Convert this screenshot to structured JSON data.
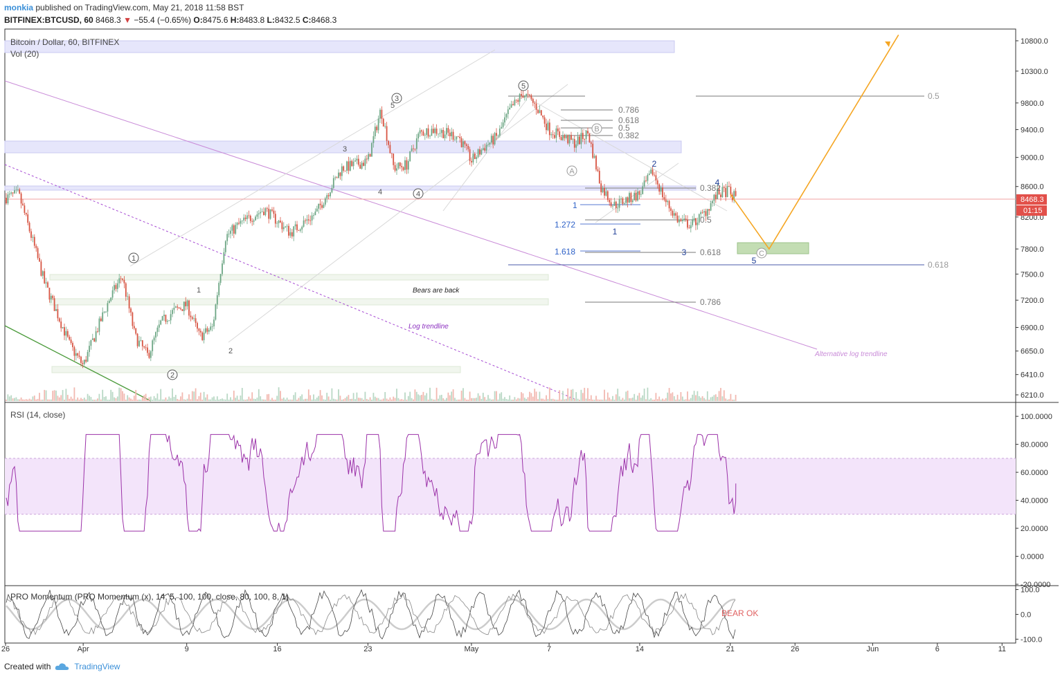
{
  "header": {
    "user": "monkia",
    "published_text": "published on TradingView.com, May 21, 2018 11:58 BST",
    "symbol": "BITFINEX:BTCUSD, 60",
    "last": "8468.3",
    "change_arrow": "▼",
    "change": "−55.4 (−0.65%)",
    "o_label": "O:",
    "o": "8475.6",
    "h_label": "H:",
    "h": "8483.8",
    "l_label": "L:",
    "l": "8432.5",
    "c_label": "C:",
    "c": "8468.3"
  },
  "panels": {
    "main_title": "Bitcoin / Dollar, 60, BITFINEX",
    "vol_title": "Vol (20)",
    "rsi_title": "RSI (14, close)",
    "mom_title": "PRO Momentum (PRO Momentum (x), 14, 5, 100, 100, close, 80, 100, 8, 1)"
  },
  "price_axis": {
    "ticks": [
      "10800.0",
      "10300.0",
      "9800.0",
      "9400.0",
      "9000.0",
      "8600.0",
      "8200.0",
      "7800.0",
      "7500.0",
      "7200.0",
      "6900.0",
      "6650.0",
      "6410.0",
      "6210.0"
    ],
    "last_price_badge": "8468.3",
    "countdown_badge": "01:15"
  },
  "rsi_axis": {
    "ticks": [
      "100.0000",
      "80.0000",
      "60.0000",
      "40.0000",
      "20.0000",
      "0.0000",
      "-20.0000"
    ]
  },
  "mom_axis": {
    "ticks": [
      "100.0",
      "0.0",
      "-100.0"
    ]
  },
  "time_axis": {
    "ticks": [
      "26",
      "Apr",
      "9",
      "16",
      "23",
      "May",
      "7",
      "14",
      "21",
      "26",
      "Jun",
      "6",
      "11"
    ]
  },
  "annotations": {
    "bears_back": "Bears are back",
    "log_trendline": "Log trendline",
    "alt_log_trendline": "Alternative log trendline",
    "bear_ok": "BEAR OK"
  },
  "fib_labels": {
    "f0786_top": "0.786",
    "f0618_top": "0.618",
    "f05_top": "0.5",
    "f0382_top": "0.382",
    "f0382_mid": "0.382",
    "f05_mid": "0.5",
    "f0618_mid": "0.618",
    "f0786_low": "0.786",
    "f05_right": "0.5",
    "f0618_right": "0.618",
    "ext_1": "1",
    "ext_1272": "1.272",
    "ext_1618": "1.618"
  },
  "wave_labels": {
    "c1": "1",
    "c2": "2",
    "c3": "3",
    "c4": "4",
    "c5": "5",
    "cA": "A",
    "cB": "B",
    "cC": "C",
    "w3_small": "3",
    "w4_small": "4",
    "w5_small": "5",
    "w1_small": "1",
    "w2_small": "2",
    "b1": "1",
    "b2": "2",
    "b3": "3",
    "b4": "4",
    "b5": "5"
  },
  "footer": {
    "created_with": "Created with",
    "brand": "TradingView"
  },
  "colors": {
    "up": "#6ba583",
    "down": "#d75442",
    "rsi": "#9b31a8",
    "rsi_band": "#f3e4fa",
    "fib": "#888888",
    "wave_blue": "#1d3c96",
    "ext_blue": "#2f62c8",
    "arrow": "#f5a623",
    "trend_purple": "#c98bd8",
    "green_line": "#4a9a3a",
    "badge_red": "#e2504a"
  },
  "chart_data": {
    "type": "candlestick",
    "title": "Bitcoin / Dollar, 60, BITFINEX",
    "x_range": [
      "2018-03-26",
      "2018-06-12"
    ],
    "ylim": [
      6150,
      11000
    ],
    "y_scale": "log",
    "last_price": 8468.3,
    "swing_path": [
      [
        "2018-03-26",
        8450
      ],
      [
        "2018-03-27",
        8500
      ],
      [
        "2018-03-29",
        7400
      ],
      [
        "2018-03-31",
        6700
      ],
      [
        "2018-04-01",
        6500
      ],
      [
        "2018-04-03",
        7200
      ],
      [
        "2018-04-04",
        7480
      ],
      [
        "2018-04-05",
        6800
      ],
      [
        "2018-04-06",
        6600
      ],
      [
        "2018-04-07",
        6950
      ],
      [
        "2018-04-08",
        7080
      ],
      [
        "2018-04-09",
        7150
      ],
      [
        "2018-04-10",
        6800
      ],
      [
        "2018-04-11",
        6900
      ],
      [
        "2018-04-12",
        7950
      ],
      [
        "2018-04-13",
        8100
      ],
      [
        "2018-04-15",
        8300
      ],
      [
        "2018-04-16",
        8150
      ],
      [
        "2018-04-17",
        8000
      ],
      [
        "2018-04-19",
        8250
      ],
      [
        "2018-04-21",
        8850
      ],
      [
        "2018-04-22",
        8900
      ],
      [
        "2018-04-23",
        8950
      ],
      [
        "2018-04-24",
        9700
      ],
      [
        "2018-04-25",
        8850
      ],
      [
        "2018-04-26",
        8900
      ],
      [
        "2018-04-27",
        9350
      ],
      [
        "2018-04-28",
        9400
      ],
      [
        "2018-04-30",
        9300
      ],
      [
        "2018-05-01",
        8950
      ],
      [
        "2018-05-02",
        9150
      ],
      [
        "2018-05-03",
        9300
      ],
      [
        "2018-05-04",
        9700
      ],
      [
        "2018-05-05",
        9950
      ],
      [
        "2018-05-06",
        9750
      ],
      [
        "2018-05-07",
        9400
      ],
      [
        "2018-05-09",
        9200
      ],
      [
        "2018-05-10",
        9350
      ],
      [
        "2018-05-11",
        8600
      ],
      [
        "2018-05-12",
        8350
      ],
      [
        "2018-05-14",
        8500
      ],
      [
        "2018-05-15",
        8800
      ],
      [
        "2018-05-16",
        8400
      ],
      [
        "2018-05-17",
        8150
      ],
      [
        "2018-05-18",
        8100
      ],
      [
        "2018-05-19",
        8250
      ],
      [
        "2018-05-20",
        8500
      ],
      [
        "2018-05-21",
        8550
      ],
      [
        "2018-05-21",
        8468.3
      ]
    ],
    "projection": [
      [
        "2018-05-21",
        8500
      ],
      [
        "2018-05-24",
        7800
      ],
      [
        "2018-06-03",
        10900
      ]
    ],
    "target_zone": {
      "x": [
        "2018-05-22",
        "2018-05-28"
      ],
      "y": [
        7750,
        7920
      ]
    },
    "rsi": {
      "name": "RSI (14, close)",
      "ylim": [
        -20,
        105
      ],
      "band": [
        30,
        70
      ],
      "last": 52
    },
    "momentum": {
      "ylim": [
        -110,
        110
      ]
    }
  }
}
